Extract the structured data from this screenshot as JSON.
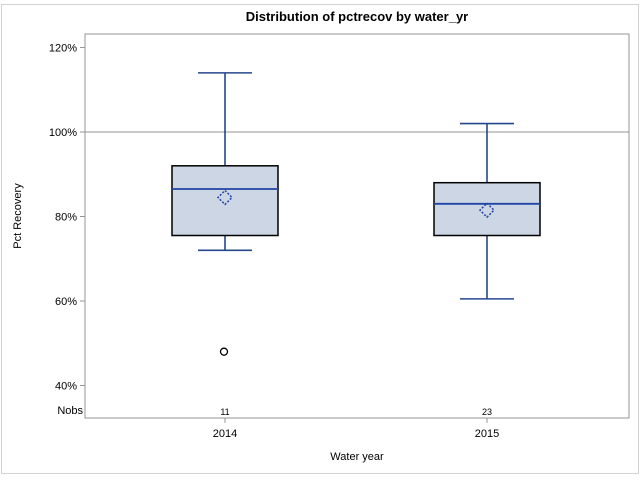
{
  "window": {
    "title": "Distribution of pctrecov by water_yr"
  },
  "chart_data": {
    "type": "boxplot",
    "title": "Distribution of pctrecov by water_yr",
    "xlabel": "Water year",
    "ylabel": "Pct Recovery",
    "nobs_label": "Nobs",
    "y_ticks": [
      40,
      60,
      80,
      100,
      120
    ],
    "y_tick_suffix": "%",
    "ylim": [
      32.3,
      123.2
    ],
    "reference_line_y": 100,
    "grid": false,
    "legend": "none",
    "groups": [
      {
        "label": "2014",
        "nobs": "11",
        "whisker_low": 72,
        "q1": 75.5,
        "median": 86.5,
        "q3": 92,
        "whisker_high": 114,
        "mean": 84.5,
        "outliers": [
          48
        ]
      },
      {
        "label": "2015",
        "nobs": "23",
        "whisker_low": 60.5,
        "q1": 75.5,
        "median": 83,
        "q3": 88,
        "whisker_high": 102,
        "mean": 81.5,
        "outliers": []
      }
    ],
    "colors": {
      "box_fill": "#ccd6e4",
      "box_border": "#000000",
      "whisker": "#26478d",
      "median": "#2144a6",
      "mean_marker": "#2144a6",
      "outlier": "#000000",
      "frame": "#949494",
      "reference_line": "#a9a9a9",
      "text": "#000000",
      "outer_border": "#d3d3d3"
    }
  }
}
